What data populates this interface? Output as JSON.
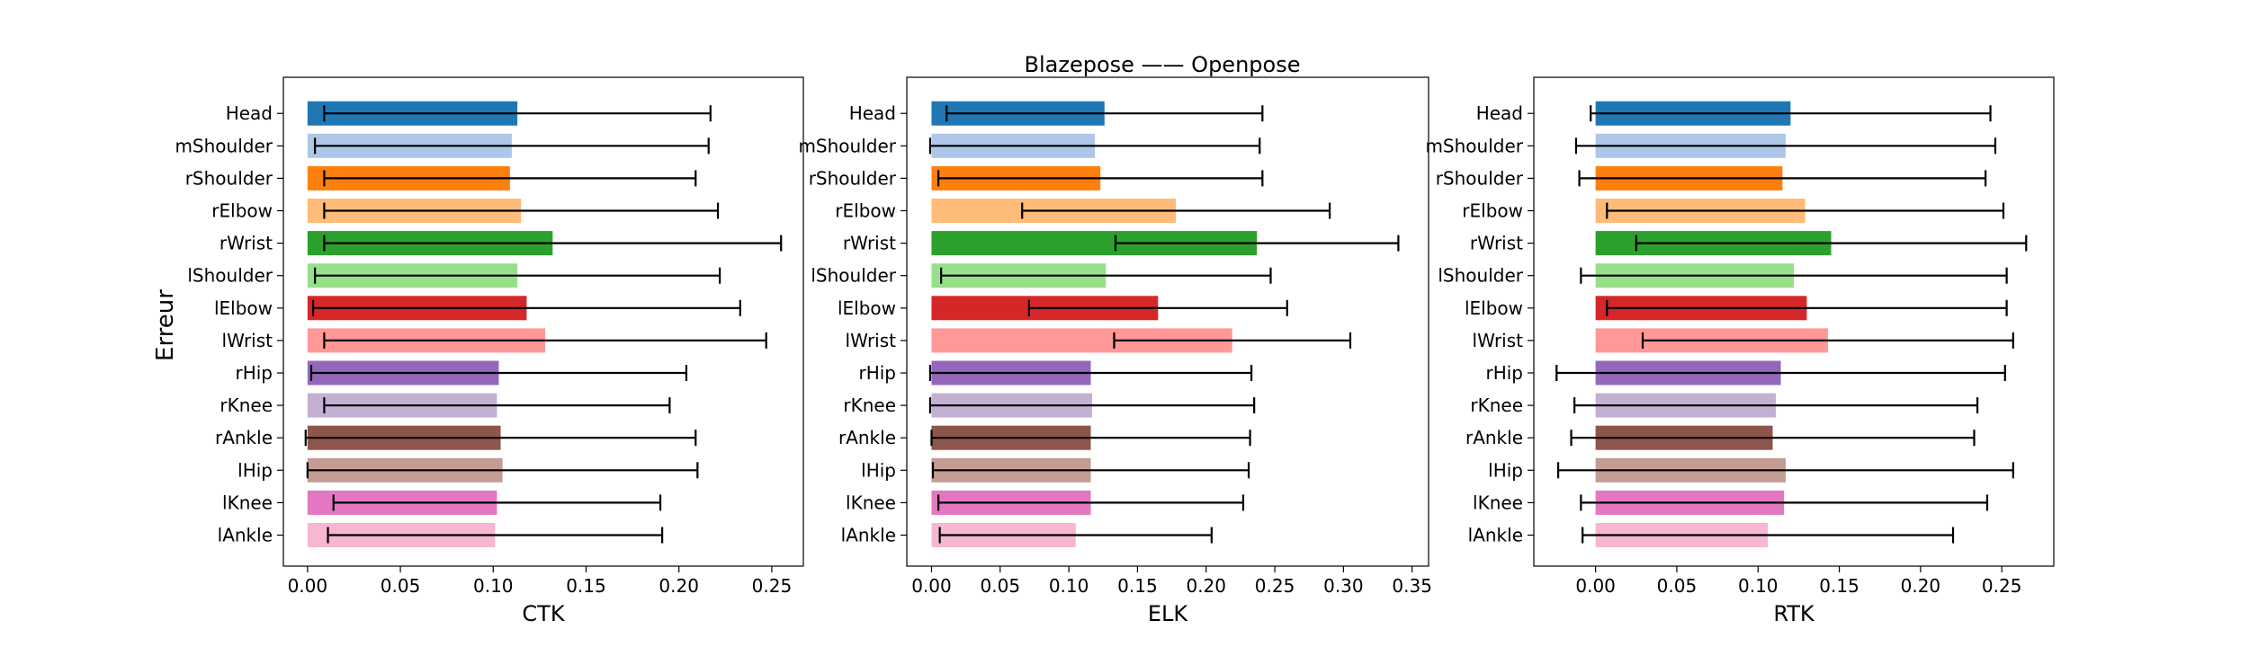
{
  "figure": {
    "suptitle": "Blazepose —— Openpose",
    "ylabel": "Erreur"
  },
  "chart_data": [
    {
      "type": "bar",
      "orientation": "horizontal",
      "xlabel": "CTK",
      "xlim": [
        -0.013,
        0.267
      ],
      "xticks": [
        0.0,
        0.05,
        0.1,
        0.15,
        0.2,
        0.25
      ],
      "xtick_labels": [
        "0.00",
        "0.05",
        "0.10",
        "0.15",
        "0.20",
        "0.25"
      ],
      "categories": [
        "Head",
        "mShoulder",
        "rShoulder",
        "rElbow",
        "rWrist",
        "lShoulder",
        "lElbow",
        "lWrist",
        "rHip",
        "rKnee",
        "rAnkle",
        "lHip",
        "lKnee",
        "lAnkle"
      ],
      "values": [
        0.113,
        0.11,
        0.109,
        0.115,
        0.132,
        0.113,
        0.118,
        0.128,
        0.103,
        0.102,
        0.104,
        0.105,
        0.102,
        0.101
      ],
      "err_minus": [
        0.104,
        0.106,
        0.1,
        0.106,
        0.123,
        0.109,
        0.115,
        0.119,
        0.101,
        0.093,
        0.105,
        0.105,
        0.088,
        0.09
      ],
      "err_plus": [
        0.104,
        0.106,
        0.1,
        0.106,
        0.123,
        0.109,
        0.115,
        0.119,
        0.101,
        0.093,
        0.105,
        0.105,
        0.088,
        0.09
      ]
    },
    {
      "type": "bar",
      "orientation": "horizontal",
      "title": "Blazepose —— Openpose",
      "xlabel": "ELK",
      "xlim": [
        -0.018,
        0.362
      ],
      "xticks": [
        0.0,
        0.05,
        0.1,
        0.15,
        0.2,
        0.25,
        0.3,
        0.35
      ],
      "xtick_labels": [
        "0.00",
        "0.05",
        "0.10",
        "0.15",
        "0.20",
        "0.25",
        "0.30",
        "0.35"
      ],
      "categories": [
        "Head",
        "mShoulder",
        "rShoulder",
        "rElbow",
        "rWrist",
        "lShoulder",
        "lElbow",
        "lWrist",
        "rHip",
        "rKnee",
        "rAnkle",
        "lHip",
        "lKnee",
        "lAnkle"
      ],
      "values": [
        0.126,
        0.119,
        0.123,
        0.178,
        0.237,
        0.127,
        0.165,
        0.219,
        0.116,
        0.117,
        0.116,
        0.116,
        0.116,
        0.105
      ],
      "err_minus": [
        0.115,
        0.12,
        0.118,
        0.112,
        0.103,
        0.12,
        0.094,
        0.086,
        0.117,
        0.118,
        0.116,
        0.115,
        0.111,
        0.099
      ],
      "err_plus": [
        0.115,
        0.12,
        0.118,
        0.112,
        0.103,
        0.12,
        0.094,
        0.086,
        0.117,
        0.118,
        0.116,
        0.115,
        0.111,
        0.099
      ]
    },
    {
      "type": "bar",
      "orientation": "horizontal",
      "xlabel": "RTK",
      "xlim": [
        -0.038,
        0.282
      ],
      "xticks": [
        0.0,
        0.05,
        0.1,
        0.15,
        0.2,
        0.25
      ],
      "xtick_labels": [
        "0.00",
        "0.05",
        "0.10",
        "0.15",
        "0.20",
        "0.25"
      ],
      "categories": [
        "Head",
        "mShoulder",
        "rShoulder",
        "rElbow",
        "rWrist",
        "lShoulder",
        "lElbow",
        "lWrist",
        "rHip",
        "rKnee",
        "rAnkle",
        "lHip",
        "lKnee",
        "lAnkle"
      ],
      "values": [
        0.12,
        0.117,
        0.115,
        0.129,
        0.145,
        0.122,
        0.13,
        0.143,
        0.114,
        0.111,
        0.109,
        0.117,
        0.116,
        0.106
      ],
      "err_minus": [
        0.123,
        0.129,
        0.125,
        0.122,
        0.12,
        0.131,
        0.123,
        0.114,
        0.138,
        0.124,
        0.124,
        0.14,
        0.125,
        0.114
      ],
      "err_plus": [
        0.123,
        0.129,
        0.125,
        0.122,
        0.12,
        0.131,
        0.123,
        0.114,
        0.138,
        0.124,
        0.124,
        0.14,
        0.125,
        0.114
      ]
    }
  ],
  "colors": [
    "#1f77b4",
    "#aec7e8",
    "#ff7f0e",
    "#ffbb78",
    "#2ca02c",
    "#98df8a",
    "#d62728",
    "#ff9896",
    "#9467bd",
    "#c5b0d5",
    "#8c564b",
    "#c49c94",
    "#e377c2",
    "#f7b6d2"
  ]
}
